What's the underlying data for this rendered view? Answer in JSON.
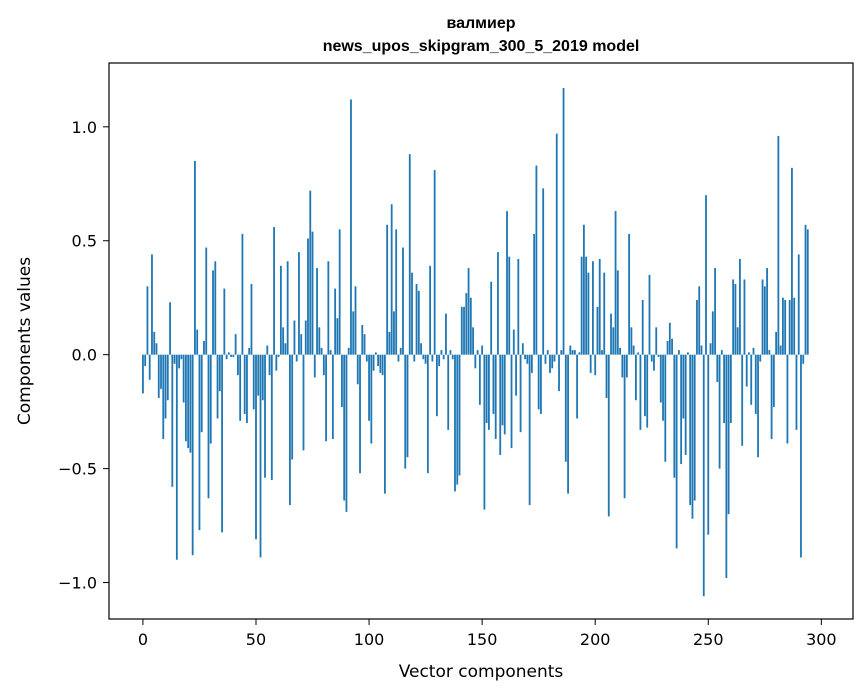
{
  "chart_data": {
    "type": "bar",
    "title": "валмиер",
    "subtitle": "news_upos_skipgram_300_5_2019 model",
    "xlabel": "Vector components",
    "ylabel": "Components values",
    "xlim": [
      -15,
      314
    ],
    "ylim": [
      -1.16,
      1.28
    ],
    "xticks": [
      0,
      50,
      100,
      150,
      200,
      250,
      300
    ],
    "xtick_labels": [
      "0",
      "50",
      "100",
      "150",
      "200",
      "250",
      "300"
    ],
    "yticks": [
      -1.0,
      -0.5,
      0.0,
      0.5,
      1.0
    ],
    "ytick_labels": [
      "−1.0",
      "−0.5",
      "0.0",
      "0.5",
      "1.0"
    ],
    "grid": false,
    "bar_color": "#1f77b4",
    "values": [
      -0.17,
      -0.05,
      0.3,
      -0.11,
      0.44,
      0.1,
      0.05,
      -0.19,
      -0.15,
      -0.37,
      -0.28,
      -0.2,
      0.23,
      -0.58,
      -0.04,
      -0.9,
      -0.06,
      -0.02,
      -0.21,
      -0.38,
      -0.41,
      -0.43,
      -0.88,
      0.85,
      0.11,
      -0.77,
      -0.34,
      0.06,
      0.47,
      -0.63,
      -0.39,
      0.37,
      0.41,
      -0.28,
      -0.16,
      -0.78,
      0.29,
      -0.02,
      0.01,
      -0.01,
      -0.01,
      0.09,
      -0.09,
      -0.29,
      0.53,
      -0.26,
      -0.3,
      0.03,
      0.31,
      -0.24,
      -0.81,
      -0.18,
      -0.89,
      -0.2,
      -0.54,
      0.04,
      -0.09,
      -0.55,
      0.56,
      -0.07,
      -0.01,
      0.39,
      0.12,
      0.05,
      0.41,
      -0.66,
      -0.46,
      0.15,
      -0.03,
      0.45,
      0.09,
      -0.42,
      0.15,
      0.51,
      0.72,
      0.54,
      -0.1,
      0.38,
      0.12,
      0.03,
      -0.09,
      -0.38,
      0.41,
      0.02,
      -0.37,
      0.29,
      0.16,
      0.55,
      -0.23,
      -0.64,
      -0.69,
      0.03,
      1.12,
      0.19,
      0.3,
      -0.13,
      -0.52,
      0.13,
      0.09,
      -0.03,
      -0.29,
      -0.39,
      -0.07,
      0.01,
      -0.05,
      -0.08,
      -0.09,
      -0.61,
      0.57,
      0.1,
      0.66,
      0.19,
      0.55,
      -0.03,
      0.03,
      0.47,
      -0.5,
      -0.45,
      0.88,
      0.36,
      -0.03,
      0.31,
      0.28,
      0.05,
      -0.02,
      -0.04,
      -0.52,
      0.39,
      -0.03,
      0.81,
      -0.27,
      -0.05,
      0.02,
      -0.02,
      0.18,
      -0.33,
      0.02,
      -0.02,
      -0.6,
      -0.57,
      -0.53,
      0.21,
      0.21,
      0.27,
      0.38,
      0.25,
      0.12,
      -0.06,
      0.02,
      -0.22,
      0.04,
      -0.68,
      -0.3,
      -0.33,
      0.32,
      -0.26,
      -0.37,
      0.45,
      -0.44,
      -0.31,
      -0.35,
      0.63,
      0.43,
      -0.41,
      0.11,
      -0.18,
      0.42,
      -0.34,
      0.05,
      -0.02,
      -0.04,
      -0.66,
      -0.08,
      0.53,
      0.83,
      -0.24,
      -0.26,
      0.73,
      -0.04,
      0.02,
      -0.08,
      -0.06,
      -0.03,
      0.97,
      -0.16,
      0.02,
      1.17,
      -0.47,
      -0.61,
      0.04,
      0.02,
      0.02,
      -0.28,
      0.01,
      0.43,
      0.57,
      0.43,
      0.36,
      -0.08,
      0.41,
      -0.09,
      0.21,
      0.42,
      0.02,
      0.36,
      -0.19,
      -0.71,
      0.18,
      0.12,
      0.63,
      0.37,
      0.03,
      -0.1,
      -0.63,
      -0.1,
      0.53,
      0.12,
      0.04,
      -0.2,
      0.01,
      -0.33,
      0.24,
      -0.27,
      -0.32,
      0.35,
      -0.03,
      -0.07,
      0.12,
      -0.01,
      -0.21,
      -0.29,
      -0.47,
      0.06,
      0.14,
      0.07,
      -0.54,
      -0.85,
      0.02,
      -0.48,
      -0.28,
      -0.44,
      0.01,
      -0.66,
      -0.72,
      -0.64,
      0.24,
      0.3,
      0.04,
      -1.06,
      0.7,
      -0.79,
      0.05,
      0.19,
      0.38,
      -0.12,
      -0.5,
      0.02,
      -0.3,
      -0.98,
      -0.7,
      -0.3,
      0.33,
      0.31,
      0.12,
      0.42,
      -0.4,
      0.33,
      -0.14,
      0.01,
      -0.22,
      0.03,
      -0.26,
      -0.45,
      -0.03,
      0.33,
      0.3,
      0.38,
      0.02,
      -0.37,
      -0.23,
      0.1,
      0.96,
      0.04,
      0.25,
      0.24,
      -0.39,
      0.24,
      0.82,
      0.25,
      -0.33,
      0.44,
      -0.89,
      -0.04,
      0.57,
      0.55
    ]
  }
}
